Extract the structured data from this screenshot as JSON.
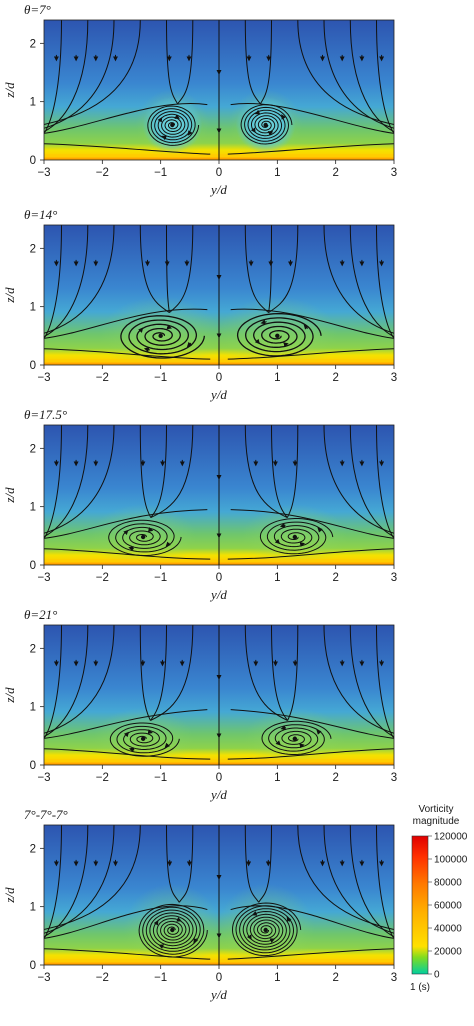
{
  "colorbar": {
    "title_line1": "Vorticity",
    "title_line2": "magnitude",
    "unit": "1 (s)",
    "ticks": [
      "120000",
      "100000",
      "80000",
      "60000",
      "40000",
      "20000",
      "0"
    ],
    "range": [
      0,
      120000
    ],
    "colors": [
      "#00cfa0",
      "#7fdc20",
      "#ffe000",
      "#ffb000",
      "#ff7a00",
      "#ff3000",
      "#e00000"
    ]
  },
  "colors": {
    "top": "#2f5fb8",
    "mid": "#3f9fdc",
    "green": "#7fce5a",
    "yellow": "#f4e200",
    "orange": "#ff9a00",
    "streamline": "#111111"
  },
  "chart_data": [
    {
      "type": "heatmap",
      "title": "θ=7°",
      "xlabel": "y/d",
      "ylabel": "z/d",
      "xlim": [
        -3,
        3
      ],
      "ylim": [
        0,
        2.4
      ],
      "xticks": [
        "−3",
        "−2",
        "−1",
        "0",
        "1",
        "2",
        "3"
      ],
      "yticks": [
        "0",
        "1",
        "2"
      ],
      "vortex_centers": [
        [
          -0.8,
          0.6
        ],
        [
          0.8,
          0.6
        ]
      ],
      "vortex_radius": [
        0.45,
        0.38
      ]
    },
    {
      "type": "heatmap",
      "title": "θ=14°",
      "xlabel": "y/d",
      "ylabel": "z/d",
      "xlim": [
        -3,
        3
      ],
      "ylim": [
        0,
        2.4
      ],
      "xticks": [
        "−3",
        "−2",
        "−1",
        "0",
        "1",
        "2",
        "3"
      ],
      "yticks": [
        "0",
        "1",
        "2"
      ],
      "vortex_centers": [
        [
          -1.0,
          0.5
        ],
        [
          1.0,
          0.5
        ]
      ],
      "vortex_radius": [
        0.75,
        0.42
      ]
    },
    {
      "type": "heatmap",
      "title": "θ=17.5°",
      "xlabel": "y/d",
      "ylabel": "z/d",
      "xlim": [
        -3,
        3
      ],
      "ylim": [
        0,
        2.4
      ],
      "xticks": [
        "−3",
        "−2",
        "−1",
        "0",
        "1",
        "2",
        "3"
      ],
      "yticks": [
        "0",
        "1",
        "2"
      ],
      "vortex_centers": [
        [
          -1.3,
          0.48
        ],
        [
          1.3,
          0.48
        ]
      ],
      "vortex_radius": [
        0.65,
        0.35
      ]
    },
    {
      "type": "heatmap",
      "title": "θ=21°",
      "xlabel": "y/d",
      "ylabel": "z/d",
      "xlim": [
        -3,
        3
      ],
      "ylim": [
        0,
        2.4
      ],
      "xticks": [
        "−3",
        "−2",
        "−1",
        "0",
        "1",
        "2",
        "3"
      ],
      "yticks": [
        "0",
        "1",
        "2"
      ],
      "vortex_centers": [
        [
          -1.3,
          0.45
        ],
        [
          1.3,
          0.45
        ]
      ],
      "vortex_radius": [
        0.62,
        0.33
      ]
    },
    {
      "type": "heatmap",
      "title": "7°-7°-7°",
      "xlabel": "y/d",
      "ylabel": "z/d",
      "xlim": [
        -3,
        3
      ],
      "ylim": [
        0,
        2.4
      ],
      "xticks": [
        "−3",
        "−2",
        "−1",
        "0",
        "1",
        "2",
        "3"
      ],
      "yticks": [
        "0",
        "1",
        "2"
      ],
      "vortex_centers": [
        [
          -0.8,
          0.6
        ],
        [
          0.8,
          0.6
        ]
      ],
      "vortex_radius": [
        0.6,
        0.5
      ]
    }
  ]
}
